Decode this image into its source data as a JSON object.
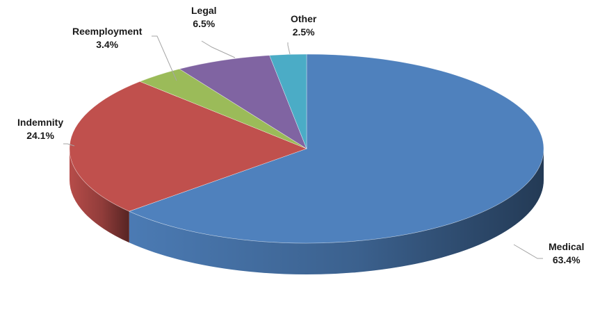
{
  "chart_data": {
    "type": "pie",
    "style": "3d",
    "categories": [
      "Medical",
      "Indemnity",
      "Reemployment",
      "Legal",
      "Other"
    ],
    "values": [
      63.4,
      24.1,
      3.4,
      6.5,
      2.5
    ],
    "value_labels": [
      "63.4%",
      "24.1%",
      "3.4%",
      "6.5%",
      "2.5%"
    ],
    "colors": [
      "#4F81BD",
      "#C0504D",
      "#9BBB59",
      "#8064A2",
      "#4BACC6"
    ],
    "legend": "none",
    "data_labels": "outside with leader lines"
  }
}
